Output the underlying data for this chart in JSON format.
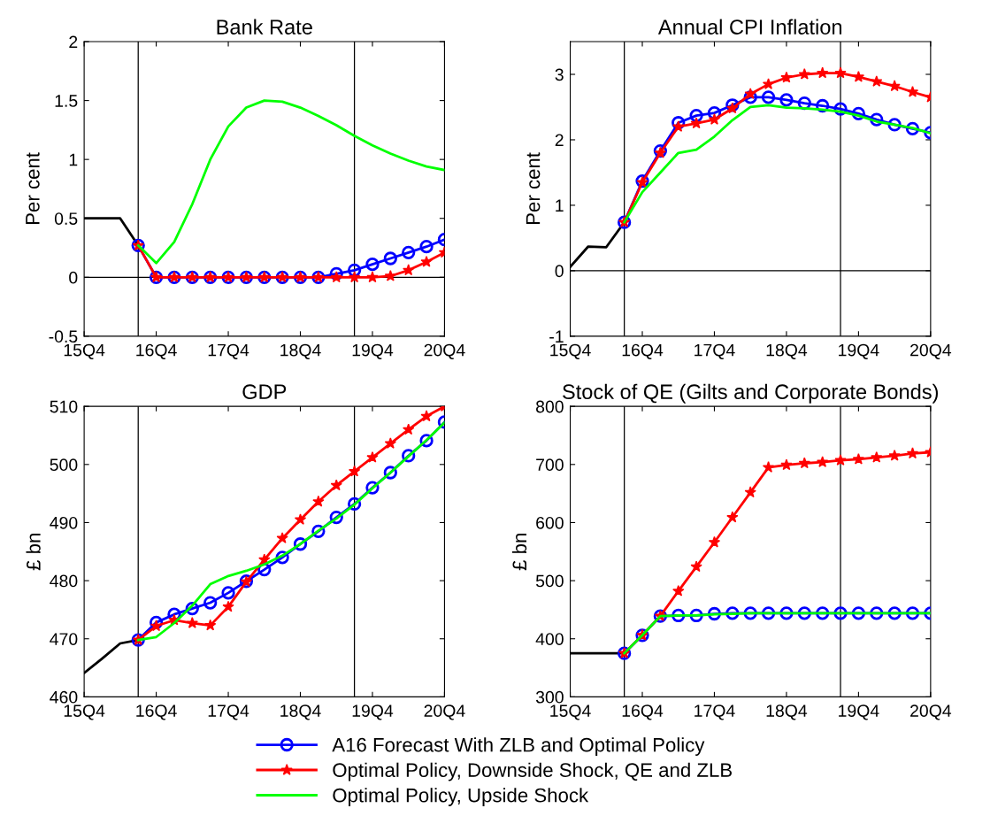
{
  "chart_data": [
    {
      "type": "line",
      "title": "Bank Rate",
      "ylabel": "Per cent",
      "legend": "bottom",
      "categories": [
        "15Q4",
        null,
        null,
        null,
        "16Q4",
        null,
        null,
        null,
        "17Q4",
        null,
        null,
        null,
        "18Q4",
        null,
        null,
        null,
        "19Q4",
        null,
        null,
        null,
        "20Q4"
      ],
      "ylim": [
        -0.5,
        2
      ],
      "yticks": [
        -0.5,
        0,
        0.5,
        1,
        1.5,
        2
      ],
      "ref_lines": [
        {
          "axis": "y",
          "value": 0,
          "color": "#000000"
        }
      ],
      "series": [
        {
          "color": "#000000",
          "marker": "none",
          "values": [
            0.5,
            0.5,
            0.5,
            0.27,
            null,
            null,
            null,
            null,
            null,
            null,
            null,
            null,
            null,
            null,
            null,
            null,
            null,
            null,
            null,
            null,
            null
          ]
        },
        {
          "name": "A16 Forecast With ZLB and Optimal Policy",
          "color": "#0000ff",
          "marker": "circle",
          "values": [
            null,
            null,
            null,
            0.27,
            0,
            0,
            0,
            0,
            0,
            0,
            0,
            0,
            0,
            0,
            0.03,
            0.06,
            0.11,
            0.16,
            0.21,
            0.26,
            0.32
          ]
        },
        {
          "name": "Optimal Policy, Downside Shock, QE and ZLB",
          "color": "#ff0000",
          "marker": "star",
          "values": [
            null,
            null,
            null,
            0.27,
            0,
            0,
            0,
            0,
            0,
            0,
            0,
            0,
            0,
            0,
            0,
            0,
            0,
            0.01,
            0.06,
            0.13,
            0.21
          ]
        },
        {
          "name": "Optimal Policy, Upside Shock",
          "color": "#00ff00",
          "marker": "none",
          "values": [
            null,
            null,
            null,
            0.27,
            0.12,
            0.3,
            0.62,
            1.0,
            1.28,
            1.44,
            1.5,
            1.49,
            1.44,
            1.37,
            1.29,
            1.2,
            1.12,
            1.05,
            0.99,
            0.94,
            0.91
          ]
        }
      ]
    },
    {
      "type": "line",
      "title": "Annual CPI Inflation",
      "ylabel": "Per cent",
      "categories": [
        "15Q4",
        null,
        null,
        null,
        "16Q4",
        null,
        null,
        null,
        "17Q4",
        null,
        null,
        null,
        "18Q4",
        null,
        null,
        null,
        "19Q4",
        null,
        null,
        null,
        "20Q4"
      ],
      "ylim": [
        -1,
        3.5
      ],
      "yticks": [
        -1,
        0,
        1,
        2,
        3
      ],
      "ref_lines": [
        {
          "axis": "y",
          "value": 0,
          "color": "#000000"
        }
      ],
      "series": [
        {
          "color": "#000000",
          "marker": "none",
          "values": [
            0.06,
            0.37,
            0.36,
            0.74,
            null,
            null,
            null,
            null,
            null,
            null,
            null,
            null,
            null,
            null,
            null,
            null,
            null,
            null,
            null,
            null,
            null
          ]
        },
        {
          "name": "A16 Forecast With ZLB and Optimal Policy",
          "color": "#0000ff",
          "marker": "circle",
          "values": [
            null,
            null,
            null,
            0.74,
            1.37,
            1.83,
            2.26,
            2.37,
            2.41,
            2.53,
            2.65,
            2.65,
            2.61,
            2.56,
            2.52,
            2.47,
            2.4,
            2.31,
            2.23,
            2.17,
            2.11
          ]
        },
        {
          "name": "Optimal Policy, Downside Shock, QE and ZLB",
          "color": "#ff0000",
          "marker": "star",
          "values": [
            null,
            null,
            null,
            0.74,
            1.35,
            1.8,
            2.2,
            2.25,
            2.31,
            2.48,
            2.7,
            2.85,
            2.95,
            3.0,
            3.02,
            3.02,
            2.96,
            2.89,
            2.82,
            2.73,
            2.65
          ]
        },
        {
          "name": "Optimal Policy, Upside Shock",
          "color": "#00ff00",
          "marker": "none",
          "values": [
            null,
            null,
            null,
            0.74,
            1.2,
            1.5,
            1.8,
            1.85,
            2.05,
            2.3,
            2.5,
            2.53,
            2.49,
            2.48,
            2.46,
            2.43,
            2.37,
            2.28,
            2.23,
            2.18,
            2.1
          ]
        }
      ]
    },
    {
      "type": "line",
      "title": "GDP",
      "ylabel": "£ bn",
      "categories": [
        "15Q4",
        null,
        null,
        null,
        "16Q4",
        null,
        null,
        null,
        "17Q4",
        null,
        null,
        null,
        "18Q4",
        null,
        null,
        null,
        "19Q4",
        null,
        null,
        null,
        "20Q4"
      ],
      "ylim": [
        460,
        510
      ],
      "yticks": [
        460,
        470,
        480,
        490,
        500,
        510
      ],
      "series": [
        {
          "color": "#000000",
          "marker": "none",
          "values": [
            464.1,
            466.6,
            469.2,
            469.8,
            null,
            null,
            null,
            null,
            null,
            null,
            null,
            null,
            null,
            null,
            null,
            null,
            null,
            null,
            null,
            null,
            null
          ]
        },
        {
          "name": "A16 Forecast With ZLB and Optimal Policy",
          "color": "#0000ff",
          "marker": "circle",
          "values": [
            null,
            null,
            null,
            469.8,
            472.8,
            474.2,
            475.2,
            476.2,
            477.9,
            479.9,
            481.9,
            484.0,
            486.3,
            488.5,
            490.9,
            493.2,
            496.0,
            498.6,
            501.5,
            504.1,
            507.3
          ]
        },
        {
          "name": "Optimal Policy, Downside Shock, QE and ZLB",
          "color": "#ff0000",
          "marker": "star",
          "values": [
            null,
            null,
            null,
            469.8,
            472.2,
            473.2,
            472.7,
            472.3,
            475.5,
            479.8,
            483.6,
            487.3,
            490.5,
            493.6,
            496.4,
            498.8,
            501.2,
            503.6,
            506.0,
            508.3,
            510
          ]
        },
        {
          "name": "Optimal Policy, Upside Shock",
          "color": "#00ff00",
          "marker": "none",
          "values": [
            null,
            null,
            null,
            469.8,
            470.3,
            472.7,
            475.7,
            479.4,
            480.8,
            481.7,
            482.8,
            484.3,
            486.3,
            488.6,
            490.7,
            493.1,
            495.9,
            498.6,
            501.4,
            504.2,
            507.2
          ]
        }
      ]
    },
    {
      "type": "line",
      "title": "Stock of QE (Gilts and Corporate Bonds)",
      "ylabel": "£ bn",
      "categories": [
        "15Q4",
        null,
        null,
        null,
        "16Q4",
        null,
        null,
        null,
        "17Q4",
        null,
        null,
        null,
        "18Q4",
        null,
        null,
        null,
        "19Q4",
        null,
        null,
        null,
        "20Q4"
      ],
      "ylim": [
        300,
        800
      ],
      "yticks": [
        300,
        400,
        500,
        600,
        700,
        800
      ],
      "series": [
        {
          "color": "#000000",
          "marker": "none",
          "values": [
            375,
            375,
            375,
            375,
            null,
            null,
            null,
            null,
            null,
            null,
            null,
            null,
            null,
            null,
            null,
            null,
            null,
            null,
            null,
            null,
            null
          ]
        },
        {
          "name": "A16 Forecast With ZLB and Optimal Policy",
          "color": "#0000ff",
          "marker": "circle",
          "values": [
            null,
            null,
            null,
            375,
            406,
            439,
            440,
            440,
            443,
            444,
            444,
            444,
            444,
            444,
            444,
            444,
            444,
            444,
            444,
            444,
            444
          ]
        },
        {
          "name": "Optimal Policy, Downside Shock, QE and ZLB",
          "color": "#ff0000",
          "marker": "star",
          "values": [
            null,
            null,
            null,
            375,
            406,
            439,
            482,
            524,
            566,
            609,
            652,
            695,
            699,
            702,
            704,
            707,
            709,
            712,
            715,
            719,
            721
          ]
        },
        {
          "name": "Optimal Policy, Upside Shock",
          "color": "#00ff00",
          "marker": "none",
          "values": [
            null,
            null,
            null,
            375,
            406,
            439,
            440,
            440,
            442,
            443,
            444,
            444,
            444,
            444,
            444,
            444,
            444,
            444,
            444,
            444,
            444
          ]
        }
      ]
    }
  ]
}
